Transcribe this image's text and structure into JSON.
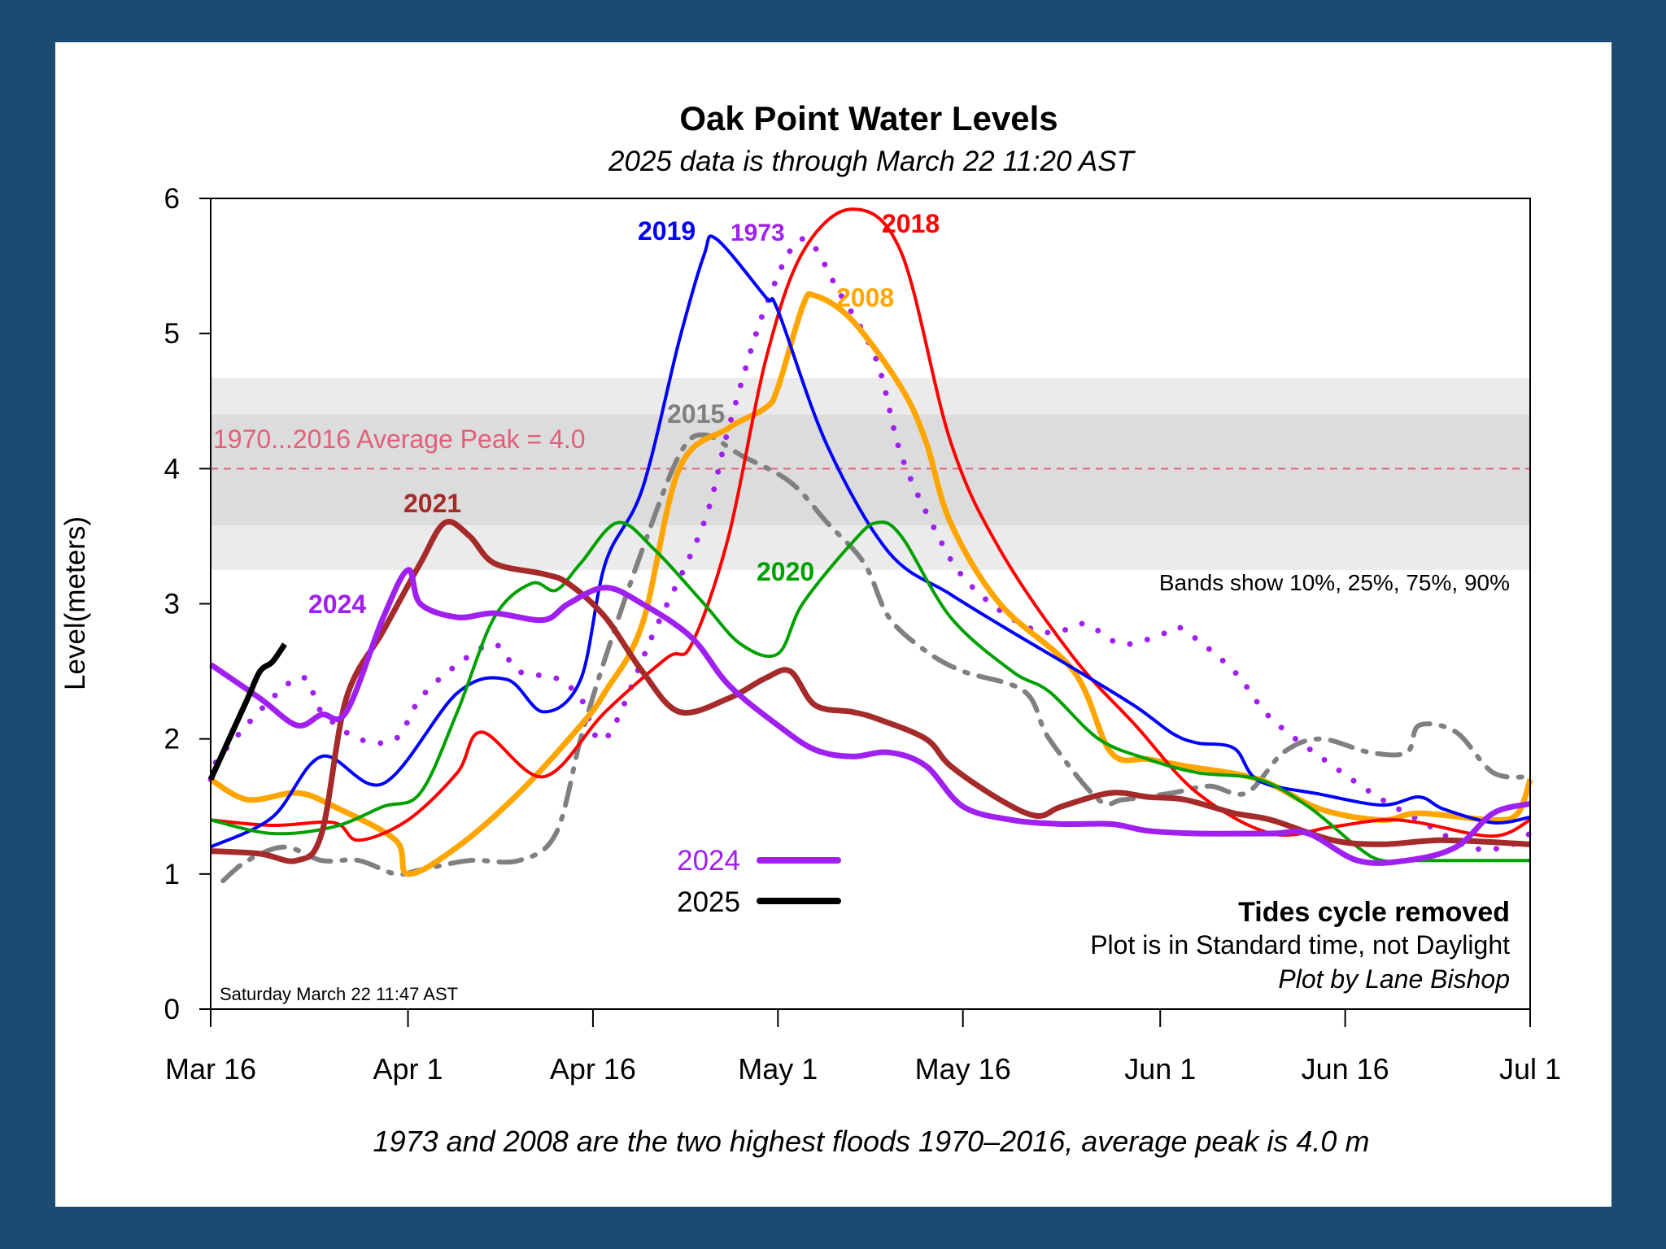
{
  "chart_data": {
    "type": "line",
    "title": "Oak Point Water Levels",
    "subtitle": "2025 data is through March 22 11:20 AST",
    "ylabel": "Level(meters)",
    "xlabel": "",
    "ylim": [
      0,
      6
    ],
    "yticks": [
      "0",
      "1",
      "2",
      "3",
      "4",
      "5",
      "6"
    ],
    "xlim": [
      "03-16",
      "07-01"
    ],
    "xticks": [
      {
        "date": "03-16",
        "label": "Mar 16"
      },
      {
        "date": "04-01",
        "label": "Apr 1"
      },
      {
        "date": "04-16",
        "label": "Apr 16"
      },
      {
        "date": "05-01",
        "label": "May 1"
      },
      {
        "date": "05-16",
        "label": "May 16"
      },
      {
        "date": "06-01",
        "label": "Jun 1"
      },
      {
        "date": "06-16",
        "label": "Jun 16"
      },
      {
        "date": "07-01",
        "label": "Jul 1"
      }
    ],
    "grid": false,
    "bands": {
      "p10": 3.25,
      "p25": 3.58,
      "p75": 4.4,
      "p90": 4.67,
      "colors": {
        "outer": "#ebebeb",
        "inner": "#dcdcdc"
      }
    },
    "average_peak": {
      "value": 4.0,
      "label": "1970...2016 Average Peak = 4.0",
      "color": "#e0607a"
    },
    "annotations": {
      "bands_note": "Bands show 10%, 25%, 75%, 90%",
      "tides": "Tides cycle removed",
      "standard_time": "Plot is in Standard time, not Daylight",
      "credit": "Plot by Lane Bishop",
      "timestamp": "Saturday March 22 11:47 AST",
      "footer": "1973 and 2008 are the two highest floods 1970–2016, average peak is 4.0 m"
    },
    "legend": [
      {
        "name": "2024",
        "color": "#a020f0"
      },
      {
        "name": "2025",
        "color": "#000000"
      }
    ],
    "series": [
      {
        "name": "1973",
        "color": "#a020f0",
        "style": "dotted",
        "points": [
          [
            "03-16",
            1.7
          ],
          [
            "03-17",
            1.9
          ],
          [
            "03-23",
            2.45
          ],
          [
            "03-25",
            2.2
          ],
          [
            "03-28",
            2.0
          ],
          [
            "03-31",
            2.0
          ],
          [
            "04-02",
            2.3
          ],
          [
            "04-05",
            2.55
          ],
          [
            "04-08",
            2.7
          ],
          [
            "04-10",
            2.5
          ],
          [
            "04-13",
            2.45
          ],
          [
            "04-15",
            2.3
          ],
          [
            "04-17",
            2.0
          ],
          [
            "04-21",
            2.8
          ],
          [
            "04-25",
            3.6
          ],
          [
            "04-27",
            4.3
          ],
          [
            "04-30",
            5.2
          ],
          [
            "05-03",
            5.7
          ],
          [
            "05-06",
            5.3
          ],
          [
            "05-09",
            4.8
          ],
          [
            "05-11",
            4.1
          ],
          [
            "05-14",
            3.5
          ],
          [
            "05-16",
            3.2
          ],
          [
            "05-19",
            2.95
          ],
          [
            "05-22",
            2.8
          ],
          [
            "05-24",
            2.8
          ],
          [
            "05-26",
            2.85
          ],
          [
            "05-29",
            2.7
          ],
          [
            "06-02",
            2.8
          ],
          [
            "06-03",
            2.8
          ],
          [
            "06-07",
            2.5
          ],
          [
            "06-10",
            2.15
          ],
          [
            "06-15",
            1.8
          ],
          [
            "06-19",
            1.55
          ],
          [
            "06-22",
            1.4
          ],
          [
            "06-26",
            1.2
          ],
          [
            "06-29",
            1.2
          ],
          [
            "07-01",
            1.3
          ]
        ]
      },
      {
        "name": "2015",
        "color": "#808080",
        "style": "dashdot",
        "points": [
          [
            "03-17",
            0.95
          ],
          [
            "03-19",
            1.1
          ],
          [
            "03-22",
            1.2
          ],
          [
            "03-25",
            1.1
          ],
          [
            "03-28",
            1.1
          ],
          [
            "03-31",
            1.0
          ],
          [
            "04-02",
            1.03
          ],
          [
            "04-06",
            1.1
          ],
          [
            "04-10",
            1.1
          ],
          [
            "04-13",
            1.3
          ],
          [
            "04-15",
            2.0
          ],
          [
            "04-17",
            2.6
          ],
          [
            "04-20",
            3.4
          ],
          [
            "04-23",
            4.1
          ],
          [
            "04-25",
            4.25
          ],
          [
            "04-28",
            4.1
          ],
          [
            "05-02",
            3.9
          ],
          [
            "05-05",
            3.6
          ],
          [
            "05-08",
            3.3
          ],
          [
            "05-10",
            2.9
          ],
          [
            "05-13",
            2.65
          ],
          [
            "05-16",
            2.5
          ],
          [
            "05-21",
            2.35
          ],
          [
            "05-23",
            2.0
          ],
          [
            "05-27",
            1.55
          ],
          [
            "05-29",
            1.55
          ],
          [
            "06-02",
            1.6
          ],
          [
            "06-05",
            1.65
          ],
          [
            "06-08",
            1.6
          ],
          [
            "06-11",
            1.9
          ],
          [
            "06-14",
            2.0
          ],
          [
            "06-18",
            1.9
          ],
          [
            "06-21",
            1.9
          ],
          [
            "06-22",
            2.1
          ],
          [
            "06-25",
            2.05
          ],
          [
            "06-28",
            1.75
          ],
          [
            "07-01",
            1.72
          ]
        ]
      },
      {
        "name": "2008",
        "color": "#ffa500",
        "style": "thick",
        "points": [
          [
            "03-16",
            1.7
          ],
          [
            "03-19",
            1.55
          ],
          [
            "03-23",
            1.6
          ],
          [
            "03-26",
            1.5
          ],
          [
            "03-31",
            1.25
          ],
          [
            "04-01",
            1.0
          ],
          [
            "04-05",
            1.2
          ],
          [
            "04-10",
            1.6
          ],
          [
            "04-15",
            2.1
          ],
          [
            "04-17",
            2.35
          ],
          [
            "04-20",
            2.85
          ],
          [
            "04-23",
            4.0
          ],
          [
            "04-27",
            4.3
          ],
          [
            "04-30",
            4.45
          ],
          [
            "05-01",
            4.6
          ],
          [
            "05-03",
            5.2
          ],
          [
            "05-04",
            5.28
          ],
          [
            "05-07",
            5.1
          ],
          [
            "05-11",
            4.6
          ],
          [
            "05-13",
            4.2
          ],
          [
            "05-15",
            3.6
          ],
          [
            "05-19",
            3.0
          ],
          [
            "05-25",
            2.5
          ],
          [
            "05-28",
            1.9
          ],
          [
            "05-31",
            1.85
          ],
          [
            "06-03",
            1.8
          ],
          [
            "06-09",
            1.7
          ],
          [
            "06-14",
            1.48
          ],
          [
            "06-19",
            1.4
          ],
          [
            "06-22",
            1.45
          ],
          [
            "06-28",
            1.4
          ],
          [
            "06-30",
            1.45
          ],
          [
            "07-01",
            1.7
          ]
        ]
      },
      {
        "name": "2018",
        "color": "#ff0000",
        "style": "solid",
        "points": [
          [
            "03-16",
            1.4
          ],
          [
            "03-21",
            1.36
          ],
          [
            "03-26",
            1.38
          ],
          [
            "03-28",
            1.25
          ],
          [
            "04-01",
            1.4
          ],
          [
            "04-05",
            1.75
          ],
          [
            "04-07",
            2.05
          ],
          [
            "04-12",
            1.72
          ],
          [
            "04-17",
            2.2
          ],
          [
            "04-22",
            2.6
          ],
          [
            "04-24",
            2.7
          ],
          [
            "04-27",
            3.5
          ],
          [
            "04-30",
            4.8
          ],
          [
            "05-03",
            5.6
          ],
          [
            "05-07",
            5.92
          ],
          [
            "05-11",
            5.6
          ],
          [
            "05-15",
            4.2
          ],
          [
            "05-19",
            3.4
          ],
          [
            "05-25",
            2.6
          ],
          [
            "05-30",
            2.1
          ],
          [
            "06-04",
            1.6
          ],
          [
            "06-10",
            1.3
          ],
          [
            "06-15",
            1.35
          ],
          [
            "06-19",
            1.4
          ],
          [
            "06-22",
            1.38
          ],
          [
            "06-28",
            1.28
          ],
          [
            "07-01",
            1.4
          ]
        ]
      },
      {
        "name": "2019",
        "color": "#0000ff",
        "style": "solid",
        "points": [
          [
            "03-16",
            1.2
          ],
          [
            "03-21",
            1.42
          ],
          [
            "03-25",
            1.87
          ],
          [
            "03-30",
            1.67
          ],
          [
            "04-05",
            2.34
          ],
          [
            "04-09",
            2.44
          ],
          [
            "04-12",
            2.2
          ],
          [
            "04-15",
            2.44
          ],
          [
            "04-17",
            3.3
          ],
          [
            "04-20",
            3.85
          ],
          [
            "04-23",
            4.95
          ],
          [
            "04-25",
            5.58
          ],
          [
            "04-26",
            5.7
          ],
          [
            "04-30",
            5.27
          ],
          [
            "05-01",
            5.17
          ],
          [
            "05-05",
            4.17
          ],
          [
            "05-10",
            3.38
          ],
          [
            "05-15",
            3.07
          ],
          [
            "05-20",
            2.79
          ],
          [
            "05-25",
            2.52
          ],
          [
            "05-30",
            2.24
          ],
          [
            "06-02",
            2.04
          ],
          [
            "06-04",
            1.97
          ],
          [
            "06-07",
            1.93
          ],
          [
            "06-09",
            1.69
          ],
          [
            "06-14",
            1.59
          ],
          [
            "06-19",
            1.51
          ],
          [
            "06-22",
            1.57
          ],
          [
            "06-24",
            1.48
          ],
          [
            "06-28",
            1.38
          ],
          [
            "07-01",
            1.42
          ]
        ]
      },
      {
        "name": "2020",
        "color": "#00a000",
        "style": "solid",
        "points": [
          [
            "03-16",
            1.4
          ],
          [
            "03-21",
            1.3
          ],
          [
            "03-26",
            1.35
          ],
          [
            "03-30",
            1.5
          ],
          [
            "04-02",
            1.6
          ],
          [
            "04-05",
            2.2
          ],
          [
            "04-08",
            2.9
          ],
          [
            "04-11",
            3.15
          ],
          [
            "04-13",
            3.1
          ],
          [
            "04-15",
            3.3
          ],
          [
            "04-18",
            3.6
          ],
          [
            "04-21",
            3.4
          ],
          [
            "04-25",
            3.0
          ],
          [
            "04-28",
            2.7
          ],
          [
            "05-01",
            2.63
          ],
          [
            "05-03",
            3.0
          ],
          [
            "05-07",
            3.45
          ],
          [
            "05-09",
            3.6
          ],
          [
            "05-11",
            3.5
          ],
          [
            "05-15",
            2.9
          ],
          [
            "05-20",
            2.5
          ],
          [
            "05-23",
            2.35
          ],
          [
            "05-27",
            2.0
          ],
          [
            "05-31",
            1.85
          ],
          [
            "06-04",
            1.75
          ],
          [
            "06-09",
            1.7
          ],
          [
            "06-13",
            1.5
          ],
          [
            "06-17",
            1.2
          ],
          [
            "06-19",
            1.1
          ],
          [
            "06-22",
            1.1
          ],
          [
            "07-01",
            1.1
          ]
        ]
      },
      {
        "name": "2021",
        "color": "#a52a2a",
        "style": "thick",
        "points": [
          [
            "03-16",
            1.17
          ],
          [
            "03-20",
            1.15
          ],
          [
            "03-23",
            1.1
          ],
          [
            "03-25",
            1.3
          ],
          [
            "03-27",
            2.3
          ],
          [
            "03-30",
            2.8
          ],
          [
            "04-02",
            3.3
          ],
          [
            "04-04",
            3.6
          ],
          [
            "04-06",
            3.5
          ],
          [
            "04-08",
            3.3
          ],
          [
            "04-12",
            3.22
          ],
          [
            "04-14",
            3.15
          ],
          [
            "04-17",
            2.9
          ],
          [
            "04-20",
            2.5
          ],
          [
            "04-23",
            2.2
          ],
          [
            "04-27",
            2.3
          ],
          [
            "04-30",
            2.45
          ],
          [
            "05-02",
            2.5
          ],
          [
            "05-04",
            2.25
          ],
          [
            "05-07",
            2.2
          ],
          [
            "05-09",
            2.15
          ],
          [
            "05-13",
            2.0
          ],
          [
            "05-15",
            1.8
          ],
          [
            "05-19",
            1.55
          ],
          [
            "05-22",
            1.43
          ],
          [
            "05-24",
            1.5
          ],
          [
            "05-28",
            1.6
          ],
          [
            "05-31",
            1.57
          ],
          [
            "06-03",
            1.55
          ],
          [
            "06-07",
            1.45
          ],
          [
            "06-10",
            1.4
          ],
          [
            "06-15",
            1.25
          ],
          [
            "06-19",
            1.22
          ],
          [
            "06-24",
            1.25
          ],
          [
            "07-01",
            1.22
          ]
        ]
      },
      {
        "name": "2024",
        "color": "#a020f0",
        "style": "thick",
        "points": [
          [
            "03-16",
            2.55
          ],
          [
            "03-20",
            2.3
          ],
          [
            "03-23",
            2.1
          ],
          [
            "03-25",
            2.18
          ],
          [
            "03-27",
            2.2
          ],
          [
            "03-30",
            2.9
          ],
          [
            "04-01",
            3.25
          ],
          [
            "04-02",
            3.0
          ],
          [
            "04-05",
            2.9
          ],
          [
            "04-08",
            2.93
          ],
          [
            "04-12",
            2.88
          ],
          [
            "04-14",
            3.0
          ],
          [
            "04-17",
            3.12
          ],
          [
            "04-20",
            3.0
          ],
          [
            "04-24",
            2.75
          ],
          [
            "04-27",
            2.4
          ],
          [
            "05-01",
            2.1
          ],
          [
            "05-04",
            1.92
          ],
          [
            "05-07",
            1.87
          ],
          [
            "05-10",
            1.9
          ],
          [
            "05-13",
            1.8
          ],
          [
            "05-16",
            1.5
          ],
          [
            "05-20",
            1.4
          ],
          [
            "05-24",
            1.37
          ],
          [
            "05-28",
            1.37
          ],
          [
            "05-31",
            1.32
          ],
          [
            "06-04",
            1.3
          ],
          [
            "06-10",
            1.3
          ],
          [
            "06-13",
            1.3
          ],
          [
            "06-17",
            1.1
          ],
          [
            "06-21",
            1.1
          ],
          [
            "06-25",
            1.2
          ],
          [
            "06-28",
            1.45
          ],
          [
            "07-01",
            1.52
          ]
        ]
      },
      {
        "name": "2025",
        "color": "#000000",
        "style": "thick",
        "points": [
          [
            "03-16",
            1.7
          ],
          [
            "03-17",
            1.9
          ],
          [
            "03-19",
            2.3
          ],
          [
            "03-20",
            2.5
          ],
          [
            "03-21",
            2.57
          ],
          [
            "03-22",
            2.7
          ]
        ]
      }
    ]
  }
}
